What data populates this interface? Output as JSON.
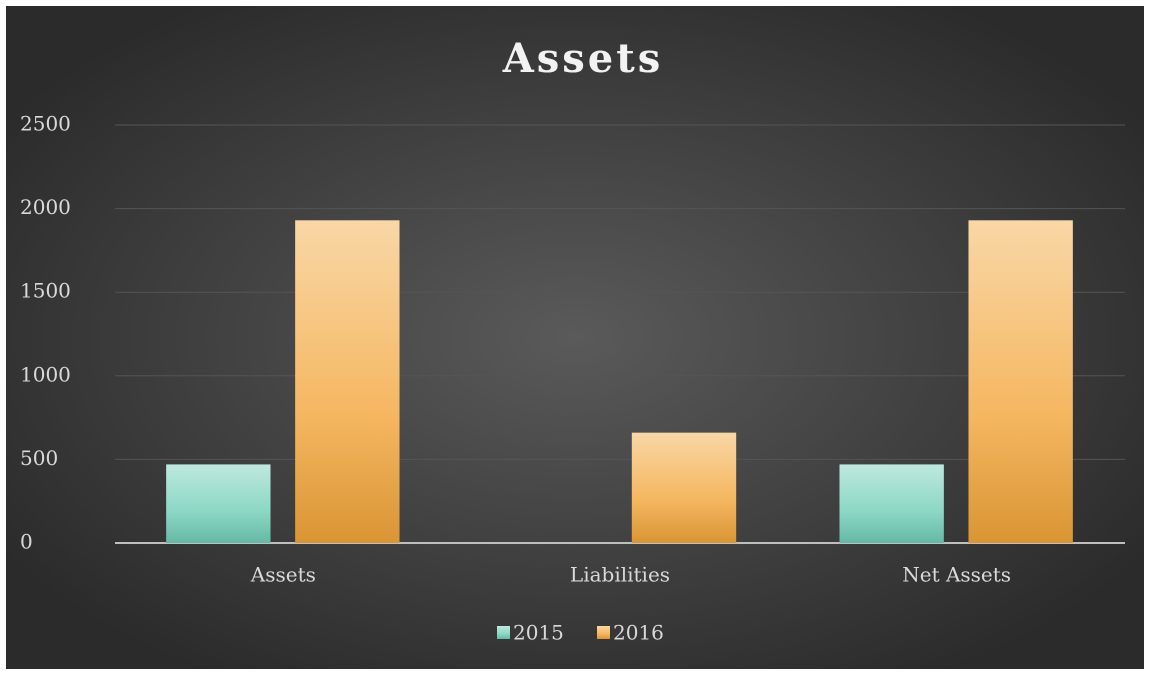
{
  "chart_data": {
    "type": "bar",
    "title": "Assets",
    "categories": [
      "Assets",
      "Liabilities",
      "Net Assets"
    ],
    "series": [
      {
        "name": "2015",
        "color": "#6fcdb6",
        "values": [
          470,
          0,
          470
        ]
      },
      {
        "name": "2016",
        "color": "#f2a53a",
        "values": [
          1930,
          660,
          1930
        ]
      }
    ],
    "ylim": [
      0,
      2500
    ],
    "yticks": [
      0,
      500,
      1000,
      1500,
      2000,
      2500
    ],
    "grid": true,
    "legend": "bottom"
  }
}
